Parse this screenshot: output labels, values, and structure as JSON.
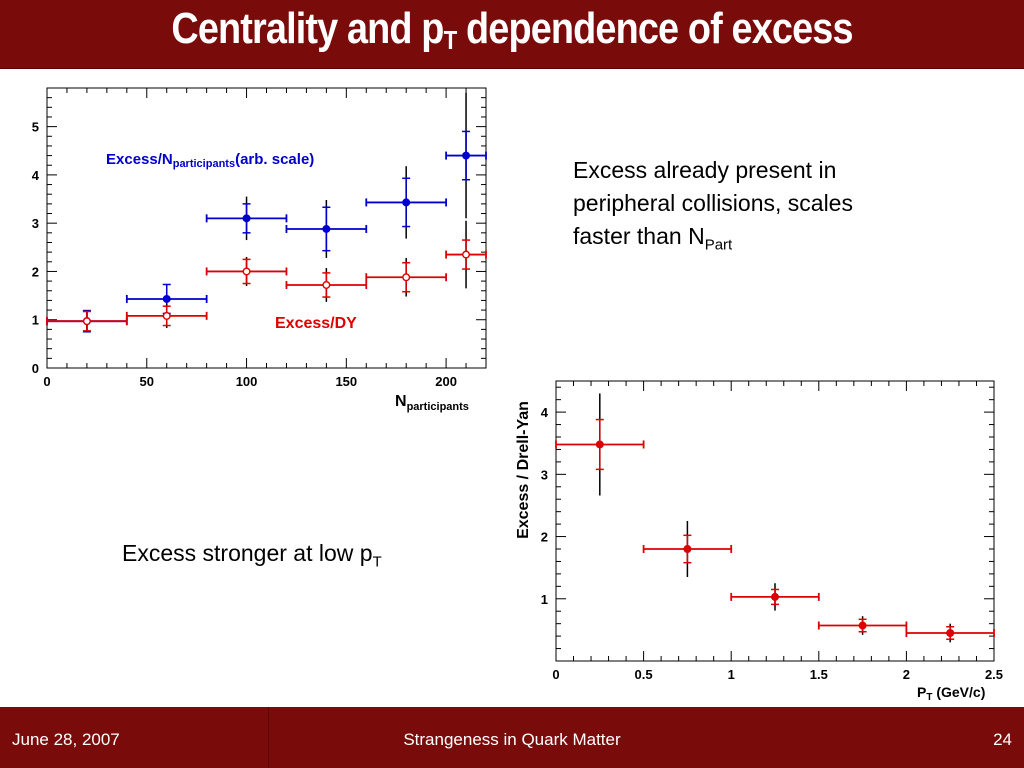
{
  "slide": {
    "title_main": "Centrality and p",
    "title_sub": "T",
    "title_tail": " dependence of excess",
    "note1": {
      "line1": "Excess already present in",
      "line2": "peripheral collisions, scales",
      "line3_prefix": "faster than N",
      "line3_sub": "Part"
    },
    "note2": {
      "prefix": "Excess stronger at low p",
      "sub": "T"
    }
  },
  "footer": {
    "date": "June 28, 2007",
    "title": "Strangeness in Quark Matter",
    "page": "24"
  },
  "colors": {
    "bar": "#7a0b0b",
    "blue": "#0000cc",
    "red": "#dd0000",
    "black": "#000000"
  },
  "chart_data": [
    {
      "type": "scatter",
      "xlabel_main": "N",
      "xlabel_sub": "participants",
      "xlim": [
        0,
        220
      ],
      "ylim": [
        0,
        5.8
      ],
      "xticks": [
        "0",
        "50",
        "100",
        "150",
        "200"
      ],
      "yticks": [
        "0",
        "1",
        "2",
        "3",
        "4",
        "5"
      ],
      "series": [
        {
          "name_main": "Excess/N",
          "name_sub": "participants",
          "name_tail": "(arb. scale)",
          "color": "#0000cc",
          "marker": "filled",
          "points": [
            {
              "x": 20,
              "y": 0.97,
              "xerr": 20,
              "stat": 0.22,
              "syst": 0.22
            },
            {
              "x": 60,
              "y": 1.43,
              "xerr": 20,
              "stat": 0.3,
              "syst": 0.3
            },
            {
              "x": 100,
              "y": 3.1,
              "xerr": 20,
              "stat": 0.3,
              "syst": 0.45
            },
            {
              "x": 140,
              "y": 2.88,
              "xerr": 20,
              "stat": 0.45,
              "syst": 0.6
            },
            {
              "x": 180,
              "y": 3.43,
              "xerr": 20,
              "stat": 0.5,
              "syst": 0.75
            },
            {
              "x": 210,
              "y": 4.4,
              "xerr": 10,
              "stat": 0.5,
              "syst": 1.3
            }
          ]
        },
        {
          "name_main": "Excess/DY",
          "color": "#dd0000",
          "marker": "open",
          "points": [
            {
              "x": 20,
              "y": 0.97,
              "xerr": 20,
              "stat": 0.2,
              "syst": 0.22
            },
            {
              "x": 60,
              "y": 1.08,
              "xerr": 20,
              "stat": 0.2,
              "syst": 0.25
            },
            {
              "x": 100,
              "y": 2.0,
              "xerr": 20,
              "stat": 0.25,
              "syst": 0.3
            },
            {
              "x": 140,
              "y": 1.72,
              "xerr": 20,
              "stat": 0.25,
              "syst": 0.35
            },
            {
              "x": 180,
              "y": 1.88,
              "xerr": 20,
              "stat": 0.3,
              "syst": 0.4
            },
            {
              "x": 210,
              "y": 2.35,
              "xerr": 10,
              "stat": 0.3,
              "syst": 0.7
            }
          ]
        }
      ]
    },
    {
      "type": "scatter",
      "xlabel_main": "P",
      "xlabel_sub": "T",
      "xlabel_tail": " (GeV/c)",
      "ylabel": "Excess / Drell-Yan",
      "xlim": [
        0,
        2.5
      ],
      "ylim": [
        0,
        4.5
      ],
      "xticks": [
        "0",
        "0.5",
        "1",
        "1.5",
        "2",
        "2.5"
      ],
      "yticks": [
        "1",
        "2",
        "3",
        "4"
      ],
      "series": [
        {
          "color": "#dd0000",
          "marker": "filled",
          "points": [
            {
              "x": 0.25,
              "y": 3.48,
              "xerr": 0.25,
              "stat": 0.4,
              "syst": 0.82
            },
            {
              "x": 0.75,
              "y": 1.8,
              "xerr": 0.25,
              "stat": 0.22,
              "syst": 0.45
            },
            {
              "x": 1.25,
              "y": 1.03,
              "xerr": 0.25,
              "stat": 0.12,
              "syst": 0.22
            },
            {
              "x": 1.75,
              "y": 0.57,
              "xerr": 0.25,
              "stat": 0.1,
              "syst": 0.15
            },
            {
              "x": 2.25,
              "y": 0.45,
              "xerr": 0.25,
              "stat": 0.1,
              "syst": 0.15
            }
          ]
        }
      ]
    }
  ]
}
